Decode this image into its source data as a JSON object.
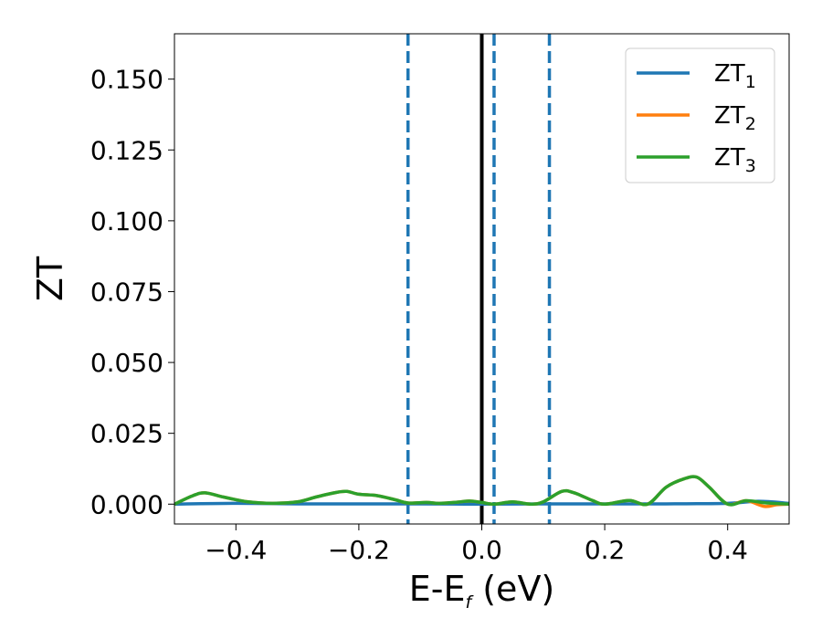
{
  "chart_data": {
    "type": "line",
    "title": "",
    "xlabel": "E-E",
    "xlabel_sub": "f",
    "xlabel_unit": " (eV)",
    "ylabel": "ZT",
    "xlim": [
      -0.5,
      0.5
    ],
    "ylim": [
      -0.007,
      0.166
    ],
    "xticks": [
      -0.4,
      -0.2,
      0.0,
      0.2,
      0.4
    ],
    "xtick_labels": [
      "−0.4",
      "−0.2",
      "0.0",
      "0.2",
      "0.4"
    ],
    "yticks": [
      0.0,
      0.025,
      0.05,
      0.075,
      0.1,
      0.125,
      0.15
    ],
    "ytick_labels": [
      "0.000",
      "0.025",
      "0.050",
      "0.075",
      "0.100",
      "0.125",
      "0.150"
    ],
    "grid": false,
    "legend_position": "top-right",
    "series": [
      {
        "name": "ZT",
        "name_sub": "1",
        "color": "#1f77b4",
        "points": [
          [
            -0.5,
            0.0
          ],
          [
            -0.4,
            0.0003
          ],
          [
            -0.3,
            0.0001
          ],
          [
            -0.2,
            0.0001
          ],
          [
            -0.1,
            0.0001
          ],
          [
            0.0,
            0.0
          ],
          [
            0.1,
            0.0001
          ],
          [
            0.2,
            0.0001
          ],
          [
            0.3,
            0.0001
          ],
          [
            0.4,
            0.0003
          ],
          [
            0.45,
            0.001
          ],
          [
            0.5,
            0.0003
          ]
        ]
      },
      {
        "name": "ZT",
        "name_sub": "2",
        "color": "#ff7f0e",
        "points": [
          [
            -0.5,
            0.0
          ],
          [
            -0.47,
            0.003
          ],
          [
            -0.45,
            0.004
          ],
          [
            -0.42,
            0.0025
          ],
          [
            -0.38,
            0.0008
          ],
          [
            -0.34,
            0.0003
          ],
          [
            -0.3,
            0.0008
          ],
          [
            -0.27,
            0.0025
          ],
          [
            -0.24,
            0.004
          ],
          [
            -0.22,
            0.0045
          ],
          [
            -0.2,
            0.0035
          ],
          [
            -0.17,
            0.003
          ],
          [
            -0.14,
            0.0015
          ],
          [
            -0.12,
            0.0004
          ],
          [
            -0.09,
            0.0006
          ],
          [
            -0.07,
            0.0003
          ],
          [
            -0.04,
            0.0007
          ],
          [
            -0.02,
            0.0011
          ],
          [
            0.0,
            0.0006
          ],
          [
            0.02,
            0.0
          ],
          [
            0.05,
            0.0008
          ],
          [
            0.08,
            0.0
          ],
          [
            0.1,
            0.0008
          ],
          [
            0.13,
            0.0045
          ],
          [
            0.15,
            0.004
          ],
          [
            0.18,
            0.0013
          ],
          [
            0.2,
            0.0
          ],
          [
            0.24,
            0.0013
          ],
          [
            0.27,
            0.0
          ],
          [
            0.3,
            0.006
          ],
          [
            0.33,
            0.009
          ],
          [
            0.35,
            0.0095
          ],
          [
            0.37,
            0.006
          ],
          [
            0.4,
            0.0
          ],
          [
            0.43,
            0.0012
          ],
          [
            0.46,
            -0.0008
          ],
          [
            0.48,
            -0.0002
          ],
          [
            0.5,
            0.0
          ]
        ]
      },
      {
        "name": "ZT",
        "name_sub": "3",
        "color": "#2ca02c",
        "points": [
          [
            -0.5,
            0.0
          ],
          [
            -0.47,
            0.003
          ],
          [
            -0.45,
            0.004
          ],
          [
            -0.42,
            0.0025
          ],
          [
            -0.38,
            0.0008
          ],
          [
            -0.34,
            0.0003
          ],
          [
            -0.3,
            0.0008
          ],
          [
            -0.27,
            0.0025
          ],
          [
            -0.24,
            0.004
          ],
          [
            -0.22,
            0.0045
          ],
          [
            -0.2,
            0.0035
          ],
          [
            -0.17,
            0.003
          ],
          [
            -0.14,
            0.0015
          ],
          [
            -0.12,
            0.0004
          ],
          [
            -0.09,
            0.0006
          ],
          [
            -0.07,
            0.0003
          ],
          [
            -0.04,
            0.0007
          ],
          [
            -0.02,
            0.0011
          ],
          [
            0.0,
            0.0006
          ],
          [
            0.02,
            0.0
          ],
          [
            0.05,
            0.0008
          ],
          [
            0.08,
            0.0
          ],
          [
            0.1,
            0.0008
          ],
          [
            0.13,
            0.0045
          ],
          [
            0.15,
            0.004
          ],
          [
            0.18,
            0.0013
          ],
          [
            0.2,
            0.0
          ],
          [
            0.24,
            0.0013
          ],
          [
            0.27,
            0.0
          ],
          [
            0.3,
            0.006
          ],
          [
            0.33,
            0.009
          ],
          [
            0.35,
            0.0095
          ],
          [
            0.37,
            0.006
          ],
          [
            0.4,
            0.0
          ],
          [
            0.43,
            0.0012
          ],
          [
            0.46,
            0.0005
          ],
          [
            0.48,
            0.0002
          ],
          [
            0.5,
            0.0
          ]
        ]
      }
    ],
    "vertical_lines": [
      {
        "x": -0.12,
        "color": "#1f77b4",
        "style": "dashed"
      },
      {
        "x": 0.02,
        "color": "#1f77b4",
        "style": "dashed"
      },
      {
        "x": 0.11,
        "color": "#1f77b4",
        "style": "dashed"
      },
      {
        "x": 0.0,
        "color": "#000000",
        "style": "solid"
      }
    ]
  }
}
